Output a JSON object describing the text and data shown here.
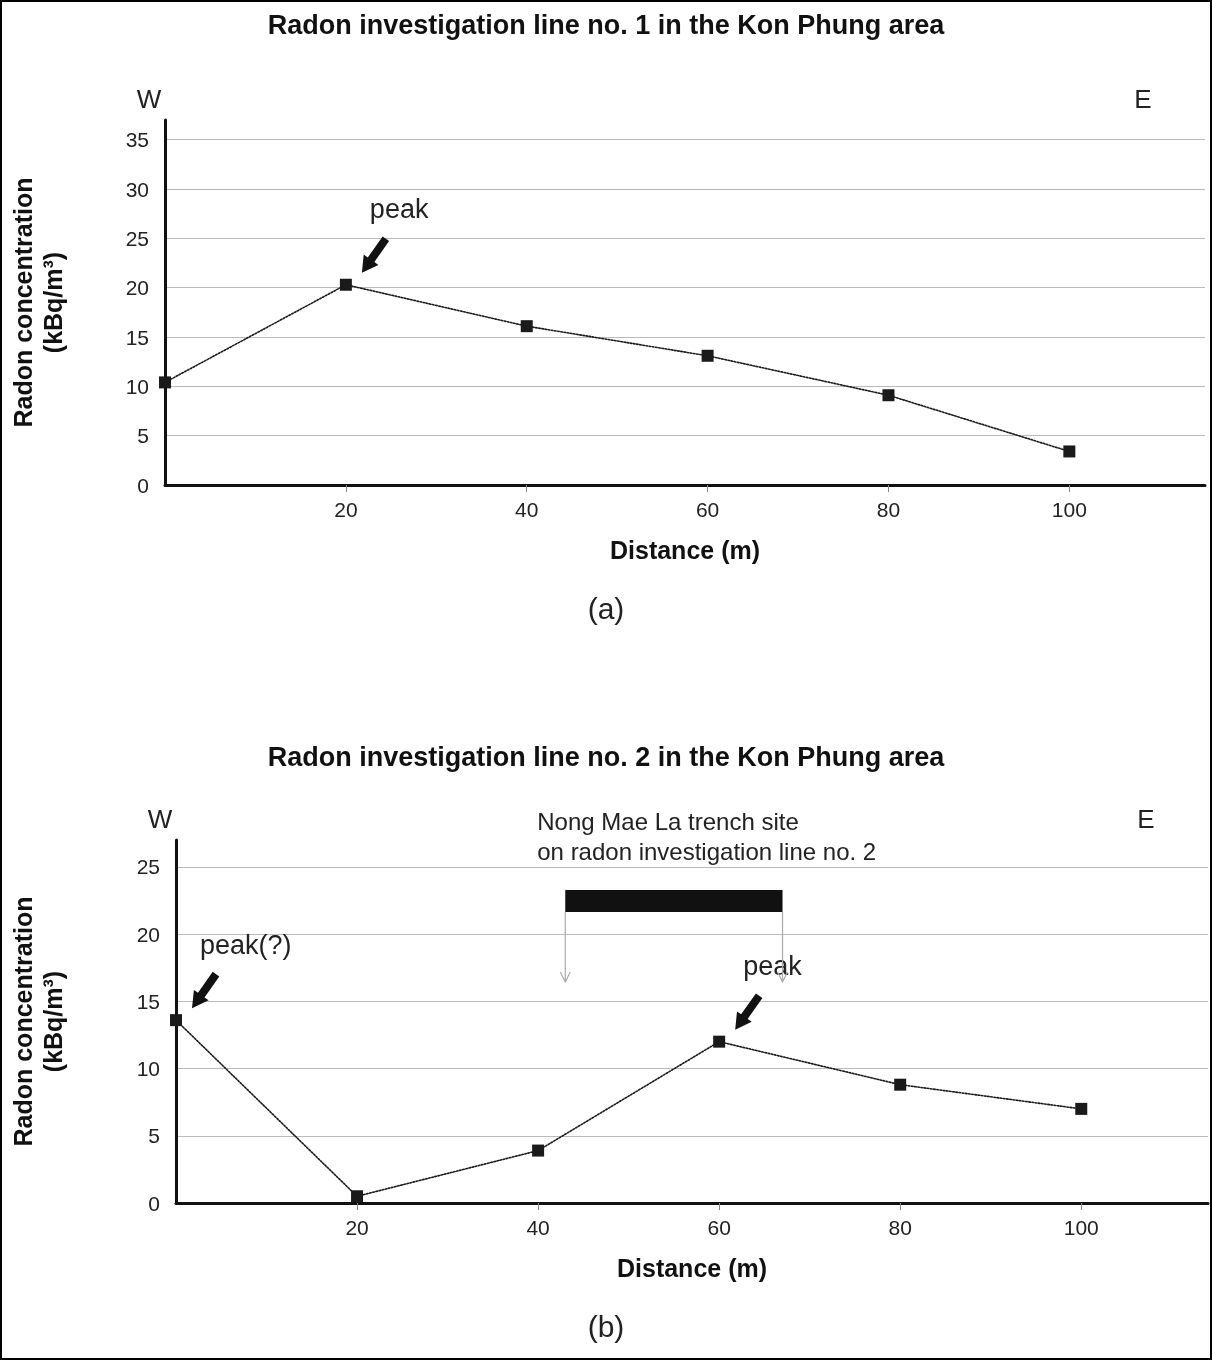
{
  "chart_data": [
    {
      "type": "line",
      "title": "Radon investigation line no. 1 in the Kon Phung area",
      "xlabel": "Distance (m)",
      "ylabel": "Radon concentration\n(kBq/m³)",
      "x": [
        0,
        20,
        40,
        60,
        80,
        100
      ],
      "series": [
        {
          "color": "#1a1a1a",
          "values": [
            10.4,
            20.3,
            16.1,
            13.1,
            9.1,
            3.4
          ]
        }
      ],
      "xlim": [
        0,
        115
      ],
      "xticks": [
        20,
        40,
        60,
        80,
        100
      ],
      "ylim": [
        0,
        37
      ],
      "yticks": [
        0,
        5,
        10,
        15,
        20,
        25,
        30,
        35
      ],
      "grid": "y",
      "marker": "square",
      "line_style": "dotted",
      "annotations": [
        {
          "text": "peak",
          "x": 20,
          "y": 20.3
        },
        "W",
        "E",
        "(a)"
      ]
    },
    {
      "type": "line",
      "title": "Radon investigation line no. 2 in the Kon Phung area",
      "xlabel": "Distance (m)",
      "ylabel": "Radon concentration\n(kBq/m³)",
      "x": [
        0,
        20,
        40,
        60,
        80,
        100
      ],
      "series": [
        {
          "color": "#1a1a1a",
          "values": [
            13.6,
            0.5,
            3.9,
            12.0,
            8.8,
            7.0
          ]
        }
      ],
      "xlim": [
        0,
        114
      ],
      "xticks": [
        20,
        40,
        60,
        80,
        100
      ],
      "ylim": [
        0,
        27
      ],
      "yticks": [
        0,
        5,
        10,
        15,
        20,
        25
      ],
      "grid": "y",
      "marker": "square",
      "line_style": "dotted",
      "bands": [
        {
          "axis": "x",
          "from": 43,
          "to": 67,
          "label": "Nong Mae La trench site\non radon investigation line no. 2",
          "color": "#111111"
        }
      ],
      "annotations": [
        {
          "text": "peak(?)",
          "x": 0,
          "y": 13.6
        },
        {
          "text": "peak",
          "x": 60,
          "y": 12.0
        },
        "W",
        "E",
        "(b)"
      ]
    }
  ]
}
